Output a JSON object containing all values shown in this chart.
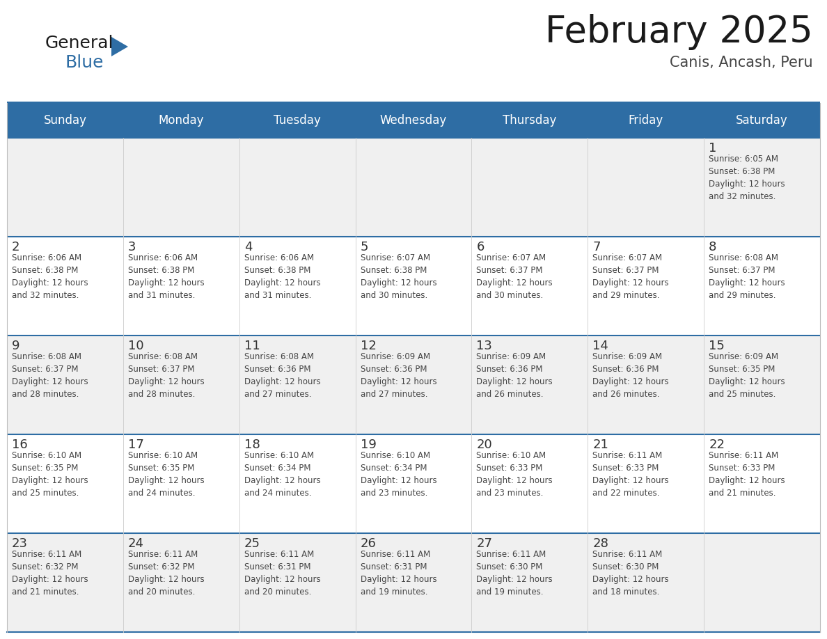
{
  "title": "February 2025",
  "subtitle": "Canis, Ancash, Peru",
  "header_bg": "#2E6DA4",
  "header_text_color": "#FFFFFF",
  "cell_bg": "#FFFFFF",
  "cell_bg_alt": "#F0F0F0",
  "day_number_color": "#333333",
  "text_color": "#444444",
  "row_separator_color": "#2E6DA4",
  "col_separator_color": "#CCCCCC",
  "days_of_week": [
    "Sunday",
    "Monday",
    "Tuesday",
    "Wednesday",
    "Thursday",
    "Friday",
    "Saturday"
  ],
  "calendar_data": [
    [
      {
        "day": "",
        "info": ""
      },
      {
        "day": "",
        "info": ""
      },
      {
        "day": "",
        "info": ""
      },
      {
        "day": "",
        "info": ""
      },
      {
        "day": "",
        "info": ""
      },
      {
        "day": "",
        "info": ""
      },
      {
        "day": "1",
        "info": "Sunrise: 6:05 AM\nSunset: 6:38 PM\nDaylight: 12 hours\nand 32 minutes."
      }
    ],
    [
      {
        "day": "2",
        "info": "Sunrise: 6:06 AM\nSunset: 6:38 PM\nDaylight: 12 hours\nand 32 minutes."
      },
      {
        "day": "3",
        "info": "Sunrise: 6:06 AM\nSunset: 6:38 PM\nDaylight: 12 hours\nand 31 minutes."
      },
      {
        "day": "4",
        "info": "Sunrise: 6:06 AM\nSunset: 6:38 PM\nDaylight: 12 hours\nand 31 minutes."
      },
      {
        "day": "5",
        "info": "Sunrise: 6:07 AM\nSunset: 6:38 PM\nDaylight: 12 hours\nand 30 minutes."
      },
      {
        "day": "6",
        "info": "Sunrise: 6:07 AM\nSunset: 6:37 PM\nDaylight: 12 hours\nand 30 minutes."
      },
      {
        "day": "7",
        "info": "Sunrise: 6:07 AM\nSunset: 6:37 PM\nDaylight: 12 hours\nand 29 minutes."
      },
      {
        "day": "8",
        "info": "Sunrise: 6:08 AM\nSunset: 6:37 PM\nDaylight: 12 hours\nand 29 minutes."
      }
    ],
    [
      {
        "day": "9",
        "info": "Sunrise: 6:08 AM\nSunset: 6:37 PM\nDaylight: 12 hours\nand 28 minutes."
      },
      {
        "day": "10",
        "info": "Sunrise: 6:08 AM\nSunset: 6:37 PM\nDaylight: 12 hours\nand 28 minutes."
      },
      {
        "day": "11",
        "info": "Sunrise: 6:08 AM\nSunset: 6:36 PM\nDaylight: 12 hours\nand 27 minutes."
      },
      {
        "day": "12",
        "info": "Sunrise: 6:09 AM\nSunset: 6:36 PM\nDaylight: 12 hours\nand 27 minutes."
      },
      {
        "day": "13",
        "info": "Sunrise: 6:09 AM\nSunset: 6:36 PM\nDaylight: 12 hours\nand 26 minutes."
      },
      {
        "day": "14",
        "info": "Sunrise: 6:09 AM\nSunset: 6:36 PM\nDaylight: 12 hours\nand 26 minutes."
      },
      {
        "day": "15",
        "info": "Sunrise: 6:09 AM\nSunset: 6:35 PM\nDaylight: 12 hours\nand 25 minutes."
      }
    ],
    [
      {
        "day": "16",
        "info": "Sunrise: 6:10 AM\nSunset: 6:35 PM\nDaylight: 12 hours\nand 25 minutes."
      },
      {
        "day": "17",
        "info": "Sunrise: 6:10 AM\nSunset: 6:35 PM\nDaylight: 12 hours\nand 24 minutes."
      },
      {
        "day": "18",
        "info": "Sunrise: 6:10 AM\nSunset: 6:34 PM\nDaylight: 12 hours\nand 24 minutes."
      },
      {
        "day": "19",
        "info": "Sunrise: 6:10 AM\nSunset: 6:34 PM\nDaylight: 12 hours\nand 23 minutes."
      },
      {
        "day": "20",
        "info": "Sunrise: 6:10 AM\nSunset: 6:33 PM\nDaylight: 12 hours\nand 23 minutes."
      },
      {
        "day": "21",
        "info": "Sunrise: 6:11 AM\nSunset: 6:33 PM\nDaylight: 12 hours\nand 22 minutes."
      },
      {
        "day": "22",
        "info": "Sunrise: 6:11 AM\nSunset: 6:33 PM\nDaylight: 12 hours\nand 21 minutes."
      }
    ],
    [
      {
        "day": "23",
        "info": "Sunrise: 6:11 AM\nSunset: 6:32 PM\nDaylight: 12 hours\nand 21 minutes."
      },
      {
        "day": "24",
        "info": "Sunrise: 6:11 AM\nSunset: 6:32 PM\nDaylight: 12 hours\nand 20 minutes."
      },
      {
        "day": "25",
        "info": "Sunrise: 6:11 AM\nSunset: 6:31 PM\nDaylight: 12 hours\nand 20 minutes."
      },
      {
        "day": "26",
        "info": "Sunrise: 6:11 AM\nSunset: 6:31 PM\nDaylight: 12 hours\nand 19 minutes."
      },
      {
        "day": "27",
        "info": "Sunrise: 6:11 AM\nSunset: 6:30 PM\nDaylight: 12 hours\nand 19 minutes."
      },
      {
        "day": "28",
        "info": "Sunrise: 6:11 AM\nSunset: 6:30 PM\nDaylight: 12 hours\nand 18 minutes."
      },
      {
        "day": "",
        "info": ""
      }
    ]
  ],
  "logo_general_color": "#1a1a1a",
  "logo_blue_color": "#2E6DA4",
  "logo_triangle_color": "#2E6DA4"
}
